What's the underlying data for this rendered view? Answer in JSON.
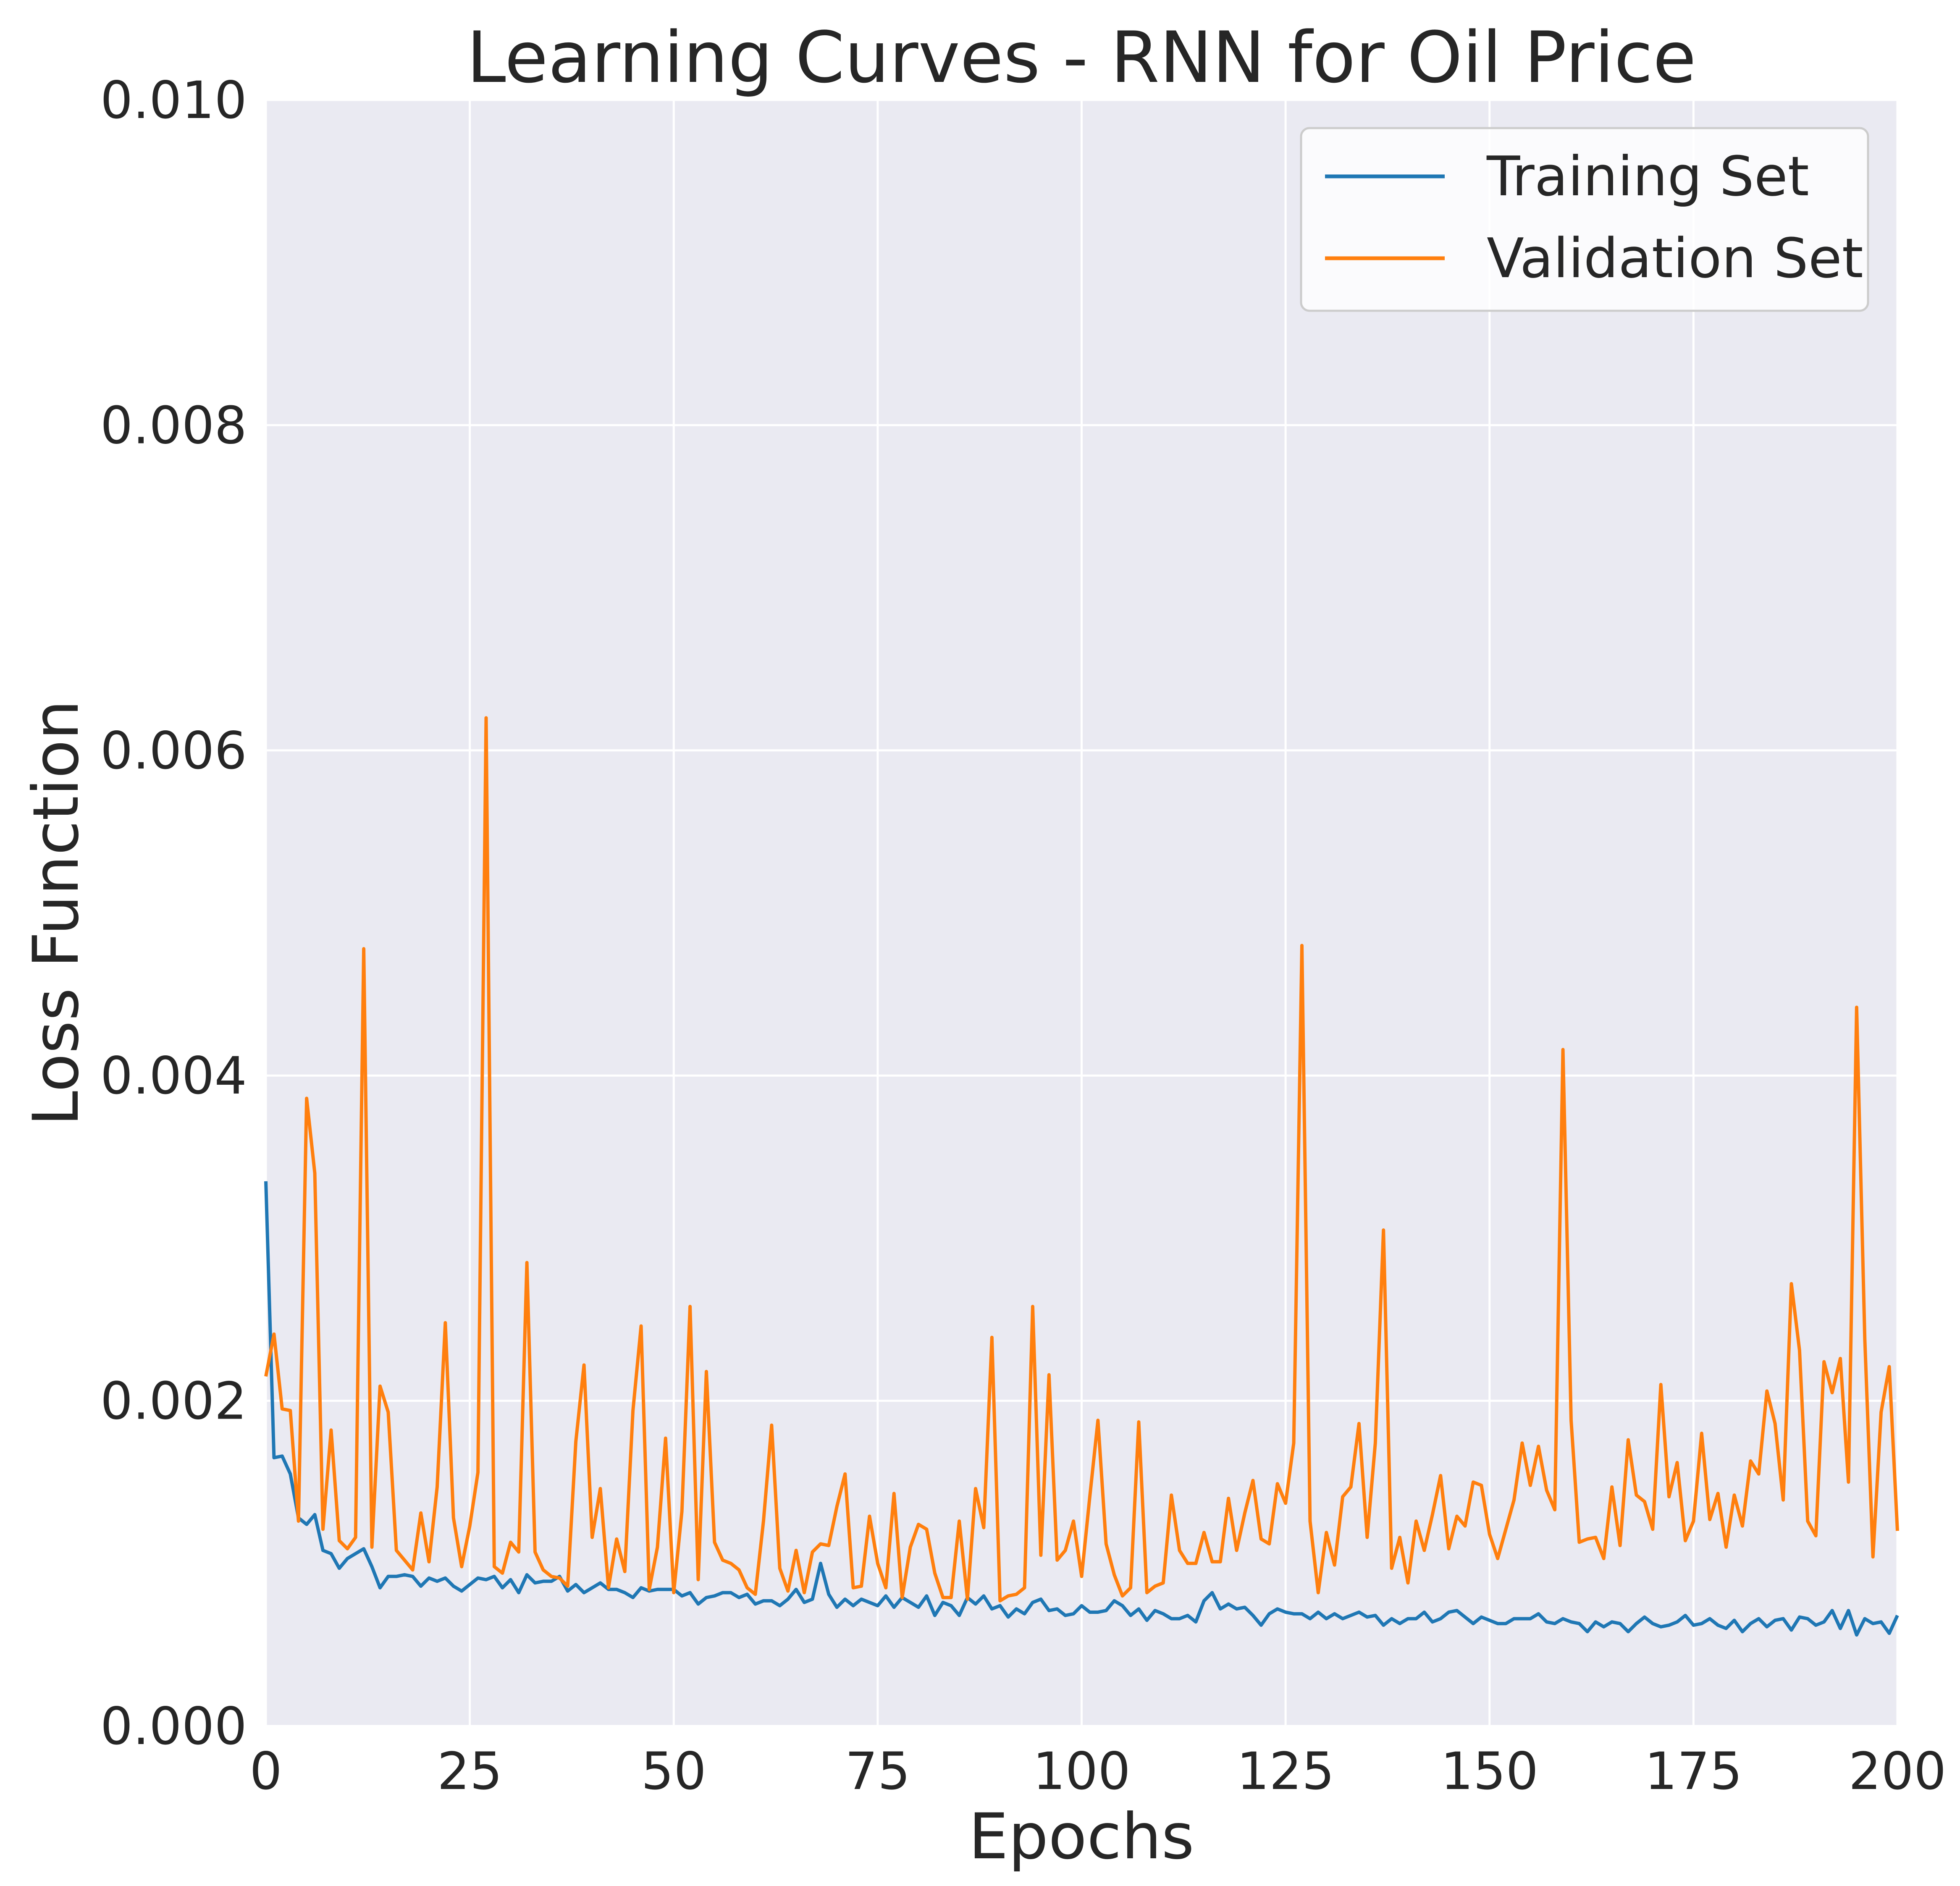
{
  "chart_data": {
    "type": "line",
    "title": "Learning Curves - RNN for Oil Price",
    "xlabel": "Epochs",
    "ylabel": "Loss Function",
    "xlim": [
      0,
      200
    ],
    "ylim": [
      0,
      0.01
    ],
    "xticks": [
      "0",
      "25",
      "50",
      "75",
      "100",
      "125",
      "150",
      "175",
      "200"
    ],
    "yticks": [
      "0.000",
      "0.002",
      "0.004",
      "0.006",
      "0.008",
      "0.010"
    ],
    "grid": true,
    "legend_position": "top-right",
    "colors": {
      "background": "#eaeaf2",
      "grid": "#ffffff",
      "training": "#1f77b4",
      "validation": "#ff7f0e"
    },
    "series": [
      {
        "name": "Training Set",
        "values": [
          0.00335,
          0.00165,
          0.00166,
          0.00155,
          0.00128,
          0.00124,
          0.0013,
          0.00108,
          0.00106,
          0.00097,
          0.00103,
          0.00106,
          0.00109,
          0.00098,
          0.00085,
          0.00092,
          0.00092,
          0.00093,
          0.00092,
          0.00086,
          0.00091,
          0.00089,
          0.00091,
          0.00086,
          0.00083,
          0.00087,
          0.00091,
          0.0009,
          0.00092,
          0.00085,
          0.0009,
          0.00082,
          0.00093,
          0.00088,
          0.00089,
          0.00089,
          0.00092,
          0.00083,
          0.00087,
          0.00082,
          0.00085,
          0.00088,
          0.00084,
          0.00084,
          0.00082,
          0.00079,
          0.00085,
          0.00083,
          0.00084,
          0.00084,
          0.00084,
          0.0008,
          0.00082,
          0.00075,
          0.00079,
          0.0008,
          0.00082,
          0.00082,
          0.00079,
          0.00081,
          0.00075,
          0.00077,
          0.00077,
          0.00074,
          0.00078,
          0.00084,
          0.00076,
          0.00078,
          0.001,
          0.00081,
          0.00073,
          0.00078,
          0.00074,
          0.00078,
          0.00076,
          0.00074,
          0.0008,
          0.00073,
          0.00079,
          0.00076,
          0.00073,
          0.0008,
          0.00068,
          0.00076,
          0.00074,
          0.00068,
          0.00079,
          0.00075,
          0.0008,
          0.00072,
          0.00074,
          0.00067,
          0.00072,
          0.00069,
          0.00076,
          0.00078,
          0.00071,
          0.00072,
          0.00068,
          0.00069,
          0.00074,
          0.0007,
          0.0007,
          0.00071,
          0.00077,
          0.00074,
          0.00068,
          0.00072,
          0.00065,
          0.00071,
          0.00069,
          0.00066,
          0.00066,
          0.00068,
          0.00064,
          0.00077,
          0.00082,
          0.00072,
          0.00075,
          0.00072,
          0.00073,
          0.00068,
          0.00062,
          0.00069,
          0.00072,
          0.0007,
          0.00069,
          0.00069,
          0.00066,
          0.0007,
          0.00066,
          0.00069,
          0.00066,
          0.00068,
          0.0007,
          0.00067,
          0.00068,
          0.00062,
          0.00066,
          0.00063,
          0.00066,
          0.00066,
          0.0007,
          0.00064,
          0.00066,
          0.0007,
          0.00071,
          0.00067,
          0.00063,
          0.00067,
          0.00065,
          0.00063,
          0.00063,
          0.00066,
          0.00066,
          0.00066,
          0.00069,
          0.00064,
          0.00063,
          0.00066,
          0.00064,
          0.00063,
          0.00058,
          0.00064,
          0.00061,
          0.00064,
          0.00063,
          0.00058,
          0.00063,
          0.00067,
          0.00063,
          0.00061,
          0.00062,
          0.00064,
          0.00068,
          0.00062,
          0.00063,
          0.00066,
          0.00062,
          0.0006,
          0.00065,
          0.00058,
          0.00063,
          0.00066,
          0.00061,
          0.00065,
          0.00066,
          0.00059,
          0.00067,
          0.00066,
          0.00062,
          0.00064,
          0.00071,
          0.0006,
          0.00071,
          0.00056,
          0.00066,
          0.00063,
          0.00064,
          0.00057,
          0.00068
        ]
      },
      {
        "name": "Validation Set",
        "values": [
          0.00215,
          0.00241,
          0.00195,
          0.00194,
          0.00126,
          0.00386,
          0.0034,
          0.00121,
          0.00182,
          0.00114,
          0.00109,
          0.00116,
          0.00478,
          0.0011,
          0.00209,
          0.00193,
          0.00108,
          0.00102,
          0.00096,
          0.00131,
          0.00101,
          0.00147,
          0.00248,
          0.00128,
          0.00098,
          0.00123,
          0.00156,
          0.0062,
          0.00098,
          0.00094,
          0.00113,
          0.00107,
          0.00285,
          0.00107,
          0.00096,
          0.00092,
          0.00091,
          0.00086,
          0.00175,
          0.00222,
          0.00116,
          0.00146,
          0.00085,
          0.00115,
          0.00095,
          0.00194,
          0.00246,
          0.00084,
          0.0011,
          0.00177,
          0.00082,
          0.00132,
          0.00258,
          0.0009,
          0.00218,
          0.00113,
          0.00102,
          0.001,
          0.00096,
          0.00085,
          0.00081,
          0.00126,
          0.00185,
          0.00097,
          0.00083,
          0.00108,
          0.00082,
          0.00107,
          0.00112,
          0.00111,
          0.00135,
          0.00155,
          0.00085,
          0.00086,
          0.00129,
          0.001,
          0.00085,
          0.00143,
          0.00079,
          0.0011,
          0.00124,
          0.00121,
          0.00094,
          0.00079,
          0.00079,
          0.00126,
          0.00078,
          0.00146,
          0.00122,
          0.00239,
          0.00077,
          0.0008,
          0.00081,
          0.00085,
          0.00258,
          0.00105,
          0.00216,
          0.00102,
          0.00108,
          0.00126,
          0.00092,
          0.00141,
          0.00188,
          0.00112,
          0.00093,
          0.0008,
          0.00085,
          0.00187,
          0.00082,
          0.00086,
          0.00088,
          0.00142,
          0.00108,
          0.001,
          0.001,
          0.00119,
          0.00101,
          0.00101,
          0.0014,
          0.00108,
          0.00131,
          0.00151,
          0.00115,
          0.00112,
          0.00149,
          0.00137,
          0.00174,
          0.0048,
          0.00126,
          0.00082,
          0.00119,
          0.00099,
          0.00141,
          0.00147,
          0.00186,
          0.00116,
          0.00174,
          0.00305,
          0.00097,
          0.00116,
          0.00088,
          0.00126,
          0.00108,
          0.0013,
          0.00154,
          0.00109,
          0.00129,
          0.00123,
          0.0015,
          0.00148,
          0.00118,
          0.00103,
          0.00121,
          0.00139,
          0.00174,
          0.00148,
          0.00172,
          0.00145,
          0.00133,
          0.00416,
          0.00188,
          0.00113,
          0.00115,
          0.00116,
          0.00103,
          0.00147,
          0.00111,
          0.00176,
          0.00142,
          0.00138,
          0.00121,
          0.0021,
          0.00141,
          0.00162,
          0.00114,
          0.00126,
          0.0018,
          0.00127,
          0.00143,
          0.0011,
          0.00142,
          0.00123,
          0.00163,
          0.00155,
          0.00206,
          0.00186,
          0.00139,
          0.00272,
          0.00231,
          0.00126,
          0.00117,
          0.00224,
          0.00205,
          0.00226,
          0.0015,
          0.00442,
          0.00238,
          0.00104,
          0.00193,
          0.00221,
          0.0012
        ]
      }
    ]
  }
}
